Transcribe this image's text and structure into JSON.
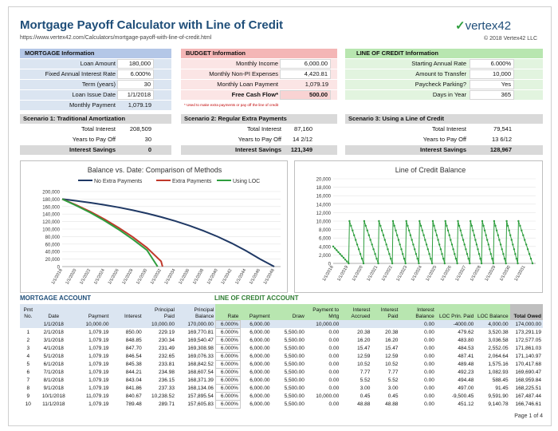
{
  "header": {
    "title": "Mortgage Payoff Calculator with Line of Credit",
    "url": "https://www.vertex42.com/Calculators/mortgage-payoff-with-line-of-credit.html",
    "logo": "vertex42",
    "copyright": "© 2018 Vertex42 LLC"
  },
  "mortgage": {
    "heading": "MORTGAGE Information",
    "rows": [
      {
        "label": "Loan Amount",
        "value": "180,000"
      },
      {
        "label": "Fixed Annual Interest Rate",
        "value": "6.000%"
      },
      {
        "label": "Term (years)",
        "value": "30"
      },
      {
        "label": "Loan Issue Date",
        "value": "1/1/2018"
      },
      {
        "label": "Monthly Payment",
        "value": "1,079.19"
      }
    ]
  },
  "budget": {
    "heading": "BUDGET Information",
    "rows": [
      {
        "label": "Monthly Income",
        "value": "6,000.00"
      },
      {
        "label": "Monthly Non-PI Expenses",
        "value": "4,420.81"
      },
      {
        "label": "Monthly Loan Payment",
        "value": "1,079.19"
      },
      {
        "label": "Free Cash Flow*",
        "value": "500.00"
      }
    ],
    "note": "* Used to make extra payments or pay off the line of credit"
  },
  "loc": {
    "heading": "LINE OF CREDIT Information",
    "rows": [
      {
        "label": "Starting Annual Rate",
        "value": "6.000%"
      },
      {
        "label": "Amount to Transfer",
        "value": "10,000"
      },
      {
        "label": "Paycheck Parking?",
        "value": "Yes"
      },
      {
        "label": "Days in Year",
        "value": "365"
      }
    ]
  },
  "scenarios": [
    {
      "heading": "Scenario 1: Traditional Amortization",
      "rows": [
        {
          "label": "Total Interest",
          "value": "208,509"
        },
        {
          "label": "Years to Pay Off",
          "value": "30"
        },
        {
          "label": "Interest Savings",
          "value": "0"
        }
      ]
    },
    {
      "heading": "Scenario 2: Regular Extra Payments",
      "rows": [
        {
          "label": "Total Interest",
          "value": "87,160"
        },
        {
          "label": "Years to Pay Off",
          "value": "14 2/12"
        },
        {
          "label": "Interest Savings",
          "value": "121,349"
        }
      ]
    },
    {
      "heading": "Scenario 3: Using a Line of Credit",
      "rows": [
        {
          "label": "Total Interest",
          "value": "79,541"
        },
        {
          "label": "Years to Pay Off",
          "value": "13 6/12"
        },
        {
          "label": "Interest Savings",
          "value": "128,967"
        }
      ]
    }
  ],
  "chart_data": [
    {
      "type": "line",
      "title": "Balance vs. Date: Comparison of Methods",
      "ylim": [
        0,
        200000
      ],
      "yticks": [
        "0",
        "20,000",
        "40,000",
        "60,000",
        "80,000",
        "100,000",
        "120,000",
        "140,000",
        "160,000",
        "180,000",
        "200,000"
      ],
      "xticks": [
        "1/1/2018",
        "1/1/2020",
        "1/1/2022",
        "1/1/2024",
        "1/1/2026",
        "1/1/2028",
        "1/1/2030",
        "1/1/2032",
        "1/1/2034",
        "1/1/2036",
        "1/1/2038",
        "1/1/2040",
        "1/1/2042",
        "1/1/2044",
        "1/1/2046",
        "1/1/2048"
      ],
      "series": [
        {
          "name": "No Extra Payments",
          "color": "#1f3864",
          "points": [
            [
              2018,
              180000
            ],
            [
              2020,
              175400
            ],
            [
              2022,
              170200
            ],
            [
              2024,
              164400
            ],
            [
              2026,
              157800
            ],
            [
              2028,
              150200
            ],
            [
              2030,
              141800
            ],
            [
              2032,
              132200
            ],
            [
              2034,
              121400
            ],
            [
              2036,
              109200
            ],
            [
              2038,
              95400
            ],
            [
              2040,
              79800
            ],
            [
              2042,
              62200
            ],
            [
              2044,
              42400
            ],
            [
              2046,
              20000
            ],
            [
              2048,
              0
            ]
          ]
        },
        {
          "name": "Extra Payments",
          "color": "#c0392b",
          "points": [
            [
              2018,
              180000
            ],
            [
              2020,
              164000
            ],
            [
              2022,
              146200
            ],
            [
              2024,
              126200
            ],
            [
              2026,
              103700
            ],
            [
              2028,
              78600
            ],
            [
              2030,
              50300
            ],
            [
              2032,
              14000
            ],
            [
              2032.2,
              0
            ]
          ]
        },
        {
          "name": "Using LOC",
          "color": "#2e9e3e",
          "points": [
            [
              2018,
              180000
            ],
            [
              2020,
              162600
            ],
            [
              2022,
              143600
            ],
            [
              2024,
              122400
            ],
            [
              2026,
              98800
            ],
            [
              2028,
              72600
            ],
            [
              2030,
              43600
            ],
            [
              2031.5,
              0
            ]
          ]
        }
      ]
    },
    {
      "type": "line",
      "title": "Line of Credit Balance",
      "ylim": [
        0,
        20000
      ],
      "yticks": [
        "0",
        "2,000",
        "4,000",
        "6,000",
        "8,000",
        "10,000",
        "12,000",
        "14,000",
        "16,000",
        "18,000",
        "20,000"
      ],
      "xticks": [
        "1/1/2018",
        "1/1/2019",
        "1/1/2020",
        "1/1/2021",
        "1/1/2022",
        "1/1/2023",
        "1/1/2024",
        "1/1/2025",
        "1/1/2026",
        "1/1/2027",
        "1/1/2028",
        "1/1/2029",
        "1/1/2030",
        "1/1/2031"
      ],
      "series": [
        {
          "name": "LOC Balance",
          "color": "#2e9e3e",
          "sawtooth": {
            "start": 2018,
            "end": 2031.5,
            "peak_years": [
              2018,
              2019.1,
              2020.1,
              2021.1,
              2022.05,
              2022.95,
              2023.85,
              2024.75,
              2025.6,
              2026.45,
              2027.3,
              2028.1,
              2028.9,
              2029.75,
              2030.55
            ],
            "peak": 10000,
            "low": 0
          }
        }
      ]
    }
  ],
  "table": {
    "mortgage_heading": "MORTGAGE ACCOUNT",
    "loc_heading": "LINE OF CREDIT ACCOUNT",
    "columns": [
      "Pmt No.",
      "Date",
      "Payment",
      "Interest",
      "Principal Paid",
      "Principal Balance",
      "Rate",
      "Payment",
      "Draw",
      "Payment to Mrtg",
      "Interest Accrued",
      "Interest Paid",
      "Interest Balance",
      "LOC Prin. Paid",
      "LOC Balance",
      "Total Owed"
    ],
    "rows": [
      [
        "",
        "1/1/2018",
        "10,000.00",
        "",
        "10,000.00",
        "170,000.00",
        "6.000%",
        "6,000.00",
        "",
        "10,000.00",
        "",
        "",
        "0.00",
        "-4000.00",
        "4,000.00",
        "174,000.00"
      ],
      [
        "1",
        "2/1/2018",
        "1,079.19",
        "850.00",
        "229.19",
        "169,770.81",
        "6.000%",
        "6,000.00",
        "5,500.00",
        "0.00",
        "20.38",
        "20.38",
        "0.00",
        "479.62",
        "3,520.38",
        "173,291.19"
      ],
      [
        "2",
        "3/1/2018",
        "1,079.19",
        "848.85",
        "230.34",
        "169,540.47",
        "6.000%",
        "6,000.00",
        "5,500.00",
        "0.00",
        "16.20",
        "16.20",
        "0.00",
        "483.80",
        "3,036.58",
        "172,577.05"
      ],
      [
        "3",
        "4/1/2018",
        "1,079.19",
        "847.70",
        "231.49",
        "169,308.98",
        "6.000%",
        "6,000.00",
        "5,500.00",
        "0.00",
        "15.47",
        "15.47",
        "0.00",
        "484.53",
        "2,552.05",
        "171,861.03"
      ],
      [
        "4",
        "5/1/2018",
        "1,079.19",
        "846.54",
        "232.65",
        "169,076.33",
        "6.000%",
        "6,000.00",
        "5,500.00",
        "0.00",
        "12.59",
        "12.59",
        "0.00",
        "487.41",
        "2,064.64",
        "171,140.97"
      ],
      [
        "5",
        "6/1/2018",
        "1,079.19",
        "845.38",
        "233.81",
        "168,842.52",
        "6.000%",
        "6,000.00",
        "5,500.00",
        "0.00",
        "10.52",
        "10.52",
        "0.00",
        "489.48",
        "1,575.16",
        "170,417.68"
      ],
      [
        "6",
        "7/1/2018",
        "1,079.19",
        "844.21",
        "234.98",
        "168,607.54",
        "6.000%",
        "6,000.00",
        "5,500.00",
        "0.00",
        "7.77",
        "7.77",
        "0.00",
        "492.23",
        "1,082.93",
        "169,690.47"
      ],
      [
        "7",
        "8/1/2018",
        "1,079.19",
        "843.04",
        "236.15",
        "168,371.39",
        "6.000%",
        "6,000.00",
        "5,500.00",
        "0.00",
        "5.52",
        "5.52",
        "0.00",
        "494.48",
        "588.45",
        "168,959.84"
      ],
      [
        "8",
        "9/1/2018",
        "1,079.19",
        "841.86",
        "237.33",
        "168,134.06",
        "6.000%",
        "6,000.00",
        "5,500.00",
        "0.00",
        "3.00",
        "3.00",
        "0.00",
        "497.00",
        "91.45",
        "168,225.51"
      ],
      [
        "9",
        "10/1/2018",
        "11,079.19",
        "840.67",
        "10,238.52",
        "157,895.54",
        "6.000%",
        "6,000.00",
        "5,500.00",
        "10,000.00",
        "0.45",
        "0.45",
        "0.00",
        "-9,500.45",
        "9,591.90",
        "167,487.44"
      ],
      [
        "10",
        "11/1/2018",
        "1,079.19",
        "789.48",
        "289.71",
        "157,605.83",
        "6.000%",
        "6,000.00",
        "5,500.00",
        "0.00",
        "48.88",
        "48.88",
        "0.00",
        "451.12",
        "9,140.78",
        "166,746.61"
      ]
    ]
  },
  "footer": {
    "page": "Page 1 of 4"
  }
}
